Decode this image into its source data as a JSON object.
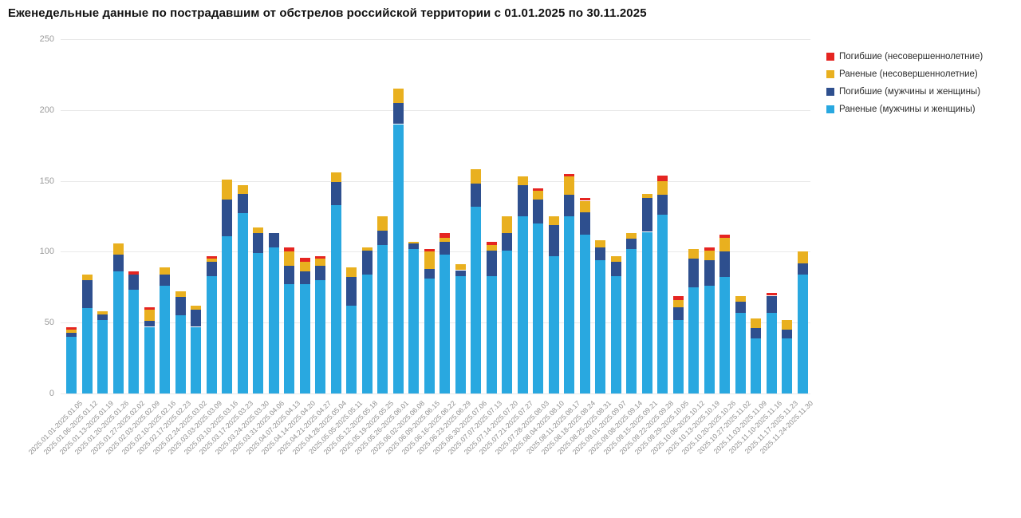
{
  "page": {
    "title": "Еженедельные данные по пострадавшим от обстрелов российской территории с 01.01.2025 по 30.11.2025"
  },
  "chart_data": {
    "type": "bar",
    "stacked": true,
    "title": "Еженедельные данные по пострадавшим от обстрелов российской территории с 01.01.2025 по 30.11.2025",
    "grid": true,
    "legend_position": "right-top",
    "y_axis": {
      "ticks": [
        0,
        50,
        100,
        150,
        200,
        250
      ],
      "min": 0,
      "max": 250
    },
    "categories": [
      "2025.01.01-2025.01.05",
      "2025.01.06-2025.01.12",
      "2025.01.13-2025.01.19",
      "2025.01.20-2025.01.26",
      "2025.01.27-2025.02.02",
      "2025.02.03-2025.02.09",
      "2025.02.10-2025.02.16",
      "2025.02.17-2025.02.23",
      "2025.02.24-2025.03.02",
      "2025.03.03-2025.03.09",
      "2025.03.10-2025.03.16",
      "2025.03.17-2025.03.23",
      "2025.03.24-2025.03.30",
      "2025.03.31-2025.04.06",
      "2025.04.07-2025.04.13",
      "2025.04.14-2025.04.20",
      "2025.04.21-2025.04.27",
      "2025.04.28-2025.05.04",
      "2025.05.05-2025.05.11",
      "2025.05.12-2025.05.18",
      "2025.05.19-2025.05.25",
      "2025.05.26-2025.06.01",
      "2025.06.02-2025.06.08",
      "2025.06.09-2025.06.15",
      "2025.06.16-2025.06.22",
      "2025.06.23-2025.06.29",
      "2025.06.30-2025.07.06",
      "2025.07.07-2025.07.13",
      "2025.07.14-2025.07.20",
      "2025.07.21-2025.07.27",
      "2025.07.28-2025.08.03",
      "2025.08.04-2025.08.10",
      "2025.08.11-2025.08.17",
      "2025.08.18-2025.08.24",
      "2025.08.25-2025.08.31",
      "2025.09.01-2025.09.07",
      "2025.09.08-2025.09.14",
      "2025.09.15-2025.09.21",
      "2025.09.22-2025.09.28",
      "2025.09.29-2025.10.05",
      "2025.10.06-2025.10.12",
      "2025.10.13-2025.10.19",
      "2025.10.20-2025.10.26",
      "2025.10.27-2025.11.02",
      "2025.11.03-2025.11.09",
      "2025.11.10-2025.11.16",
      "2025.11.17-2025.11.23",
      "2025.11.24-2025.11.30"
    ],
    "series": [
      {
        "name": "Раненые (мужчины и женщины)",
        "color": "#29a8e0",
        "values": [
          40,
          60,
          52,
          86,
          73,
          47,
          76,
          55,
          47,
          83,
          111,
          127,
          99,
          103,
          77,
          77,
          80,
          133,
          62,
          84,
          105,
          190,
          102,
          81,
          98,
          83,
          132,
          83,
          101,
          125,
          120,
          97,
          125,
          112,
          94,
          83,
          102,
          114,
          126,
          52,
          75,
          76,
          82,
          57,
          39,
          57,
          39,
          84
        ]
      },
      {
        "name": "Погибшие (мужчины и женщины)",
        "color": "#2e4f8e",
        "values": [
          3,
          20,
          4,
          12,
          11,
          4,
          8,
          13,
          12,
          10,
          26,
          14,
          14,
          10,
          13,
          9,
          10,
          16,
          20,
          17,
          10,
          15,
          4,
          7,
          9,
          4,
          16,
          18,
          12,
          22,
          17,
          22,
          15,
          16,
          9,
          10,
          7,
          24,
          14,
          9,
          20,
          18,
          18,
          8,
          7,
          12,
          6,
          8
        ]
      },
      {
        "name": "Раненые (несовершеннолетние)",
        "color": "#e9b01f",
        "values": [
          2,
          4,
          2,
          8,
          0,
          8,
          5,
          4,
          3,
          2,
          14,
          6,
          4,
          0,
          10,
          7,
          5,
          7,
          7,
          2,
          10,
          10,
          1,
          12,
          3,
          4,
          10,
          4,
          12,
          6,
          6,
          6,
          13,
          8,
          5,
          4,
          4,
          3,
          10,
          5,
          7,
          7,
          10,
          4,
          7,
          0,
          7,
          8
        ]
      },
      {
        "name": "Погибшие (несовершеннолетние)",
        "color": "#e52521",
        "values": [
          2,
          0,
          0,
          0,
          2,
          2,
          0,
          0,
          0,
          2,
          0,
          0,
          0,
          0,
          3,
          3,
          2,
          0,
          0,
          0,
          0,
          0,
          0,
          2,
          3,
          0,
          0,
          2,
          0,
          0,
          2,
          0,
          2,
          2,
          0,
          0,
          0,
          0,
          4,
          3,
          0,
          2,
          2,
          0,
          0,
          2,
          0,
          0
        ]
      }
    ]
  }
}
